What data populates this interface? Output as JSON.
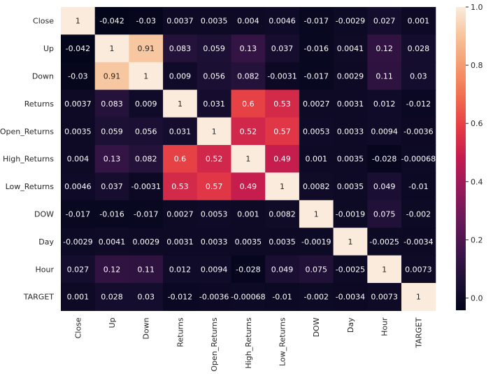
{
  "chart_data": {
    "type": "heatmap",
    "title": "",
    "xlabel": "",
    "ylabel": "",
    "rows": [
      "Close",
      "Up",
      "Down",
      "Returns",
      "Open_Returns",
      "High_Returns",
      "Low_Returns",
      "DOW",
      "Day",
      "Hour",
      "TARGET"
    ],
    "columns": [
      "Close",
      "Up",
      "Down",
      "Returns",
      "Open_Returns",
      "High_Returns",
      "Low_Returns",
      "DOW",
      "Day",
      "Hour",
      "TARGET"
    ],
    "values": [
      [
        1,
        -0.042,
        -0.03,
        0.0037,
        0.0035,
        0.004,
        0.0046,
        -0.017,
        -0.0029,
        0.027,
        0.001
      ],
      [
        -0.042,
        1,
        0.91,
        0.083,
        0.059,
        0.13,
        0.037,
        -0.016,
        0.0041,
        0.12,
        0.028
      ],
      [
        -0.03,
        0.91,
        1,
        0.009,
        0.056,
        0.082,
        -0.0031,
        -0.017,
        0.0029,
        0.11,
        0.03
      ],
      [
        0.0037,
        0.083,
        0.009,
        1,
        0.031,
        0.6,
        0.53,
        0.0027,
        0.0031,
        0.012,
        -0.012
      ],
      [
        0.0035,
        0.059,
        0.056,
        0.031,
        1,
        0.52,
        0.57,
        0.0053,
        0.0033,
        0.0094,
        -0.0036
      ],
      [
        0.004,
        0.13,
        0.082,
        0.6,
        0.52,
        1,
        0.49,
        0.001,
        0.0035,
        -0.028,
        -0.00068
      ],
      [
        0.0046,
        0.037,
        -0.0031,
        0.53,
        0.57,
        0.49,
        1,
        0.0082,
        0.0035,
        0.049,
        -0.01
      ],
      [
        -0.017,
        -0.016,
        -0.017,
        0.0027,
        0.0053,
        0.001,
        0.0082,
        1,
        -0.0019,
        0.075,
        -0.002
      ],
      [
        -0.0029,
        0.0041,
        0.0029,
        0.0031,
        0.0033,
        0.0035,
        0.0035,
        -0.0019,
        1,
        -0.0025,
        -0.0034
      ],
      [
        0.027,
        0.12,
        0.11,
        0.012,
        0.0094,
        -0.028,
        0.049,
        0.075,
        -0.0025,
        1,
        0.0073
      ],
      [
        0.001,
        0.028,
        0.03,
        -0.012,
        -0.0036,
        -0.00068,
        -0.01,
        -0.002,
        -0.0034,
        0.0073,
        1
      ]
    ],
    "value_range": [
      -0.042,
      1
    ],
    "colormap": "rocket",
    "colorbar": {
      "ticks": [
        0.0,
        0.2,
        0.4,
        0.6,
        0.8,
        1.0
      ],
      "tick_labels": [
        "0.0",
        "0.2",
        "0.4",
        "0.6",
        "0.8",
        "1.0"
      ]
    },
    "annotations": true,
    "grid": false,
    "legend": "colorbar-right"
  }
}
